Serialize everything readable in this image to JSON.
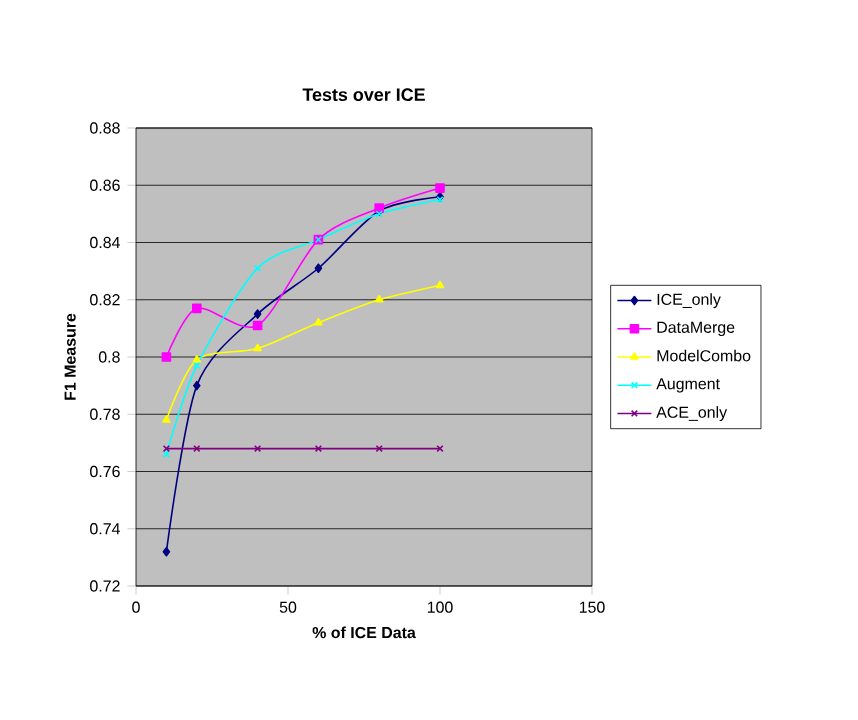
{
  "chart_data": {
    "type": "line",
    "title": "Tests over ICE",
    "xlabel": "% of ICE Data",
    "ylabel": "F1 Measure",
    "x": [
      10,
      20,
      40,
      60,
      80,
      100
    ],
    "series": [
      {
        "name": "ICE_only",
        "color": "#000080",
        "marker": "diamond",
        "values": [
          0.732,
          0.79,
          0.815,
          0.831,
          0.851,
          0.856
        ]
      },
      {
        "name": "DataMerge",
        "color": "#ff00ff",
        "marker": "square",
        "values": [
          0.8,
          0.817,
          0.811,
          0.841,
          0.852,
          0.859
        ]
      },
      {
        "name": "ModelCombo",
        "color": "#ffff00",
        "marker": "triangle",
        "values": [
          0.778,
          0.799,
          0.803,
          0.812,
          0.82,
          0.825
        ]
      },
      {
        "name": "Augment",
        "color": "#00ffff",
        "marker": "cross",
        "values": [
          0.766,
          0.797,
          0.831,
          0.841,
          0.85,
          0.855
        ]
      },
      {
        "name": "ACE_only",
        "color": "#800080",
        "marker": "cross",
        "values": [
          0.768,
          0.768,
          0.768,
          0.768,
          0.768,
          0.768
        ]
      }
    ],
    "xlim": [
      0,
      150
    ],
    "xticks": [
      0,
      50,
      100,
      150
    ],
    "ylim": [
      0.72,
      0.88
    ],
    "yticks": [
      {
        "value": 0.72,
        "label": "0.72"
      },
      {
        "value": 0.74,
        "label": "0.74"
      },
      {
        "value": 0.76,
        "label": "0.76"
      },
      {
        "value": 0.78,
        "label": "0.78"
      },
      {
        "value": 0.8,
        "label": "0.8"
      },
      {
        "value": 0.82,
        "label": "0.82"
      },
      {
        "value": 0.84,
        "label": "0.84"
      },
      {
        "value": 0.86,
        "label": "0.86"
      },
      {
        "value": 0.88,
        "label": "0.88"
      }
    ],
    "grid": "y",
    "legend": "right"
  }
}
